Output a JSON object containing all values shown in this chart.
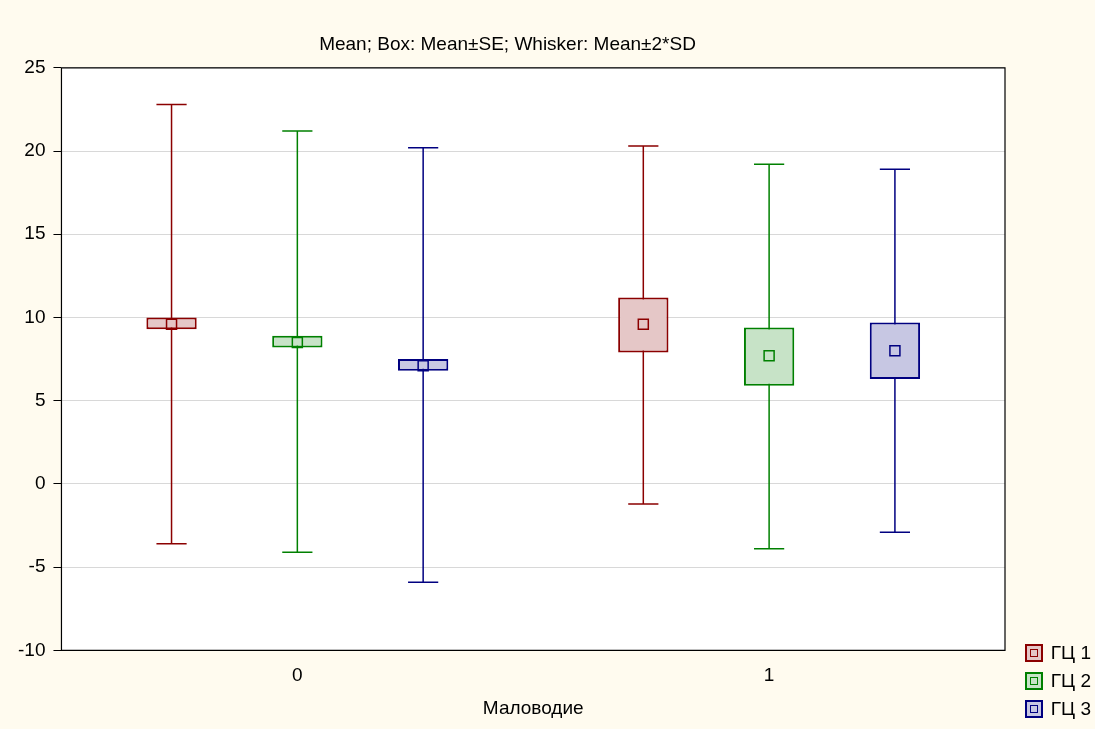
{
  "chart_data": {
    "type": "box",
    "title": "Mean; Box: Mean±SE; Whisker: Mean±2*SD",
    "xlabel": "Маловодие",
    "categories": [
      "0",
      "1"
    ],
    "ylim": [
      -10,
      25
    ],
    "yticks": [
      -10,
      -5,
      0,
      5,
      10,
      15,
      20,
      25
    ],
    "grid": "y",
    "legend": "bottom right",
    "marker": "square",
    "series": [
      {
        "name": "ГЦ 1",
        "color": "#8b0000",
        "boxes": [
          {
            "low": -3.6,
            "q1": 9.3,
            "median": 9.6,
            "q3": 10,
            "high": 22.8
          },
          {
            "low": -1.2,
            "q1": 7.9,
            "median": 9.6,
            "q3": 11.2,
            "high": 20.3
          }
        ]
      },
      {
        "name": "ГЦ 2",
        "color": "#008000",
        "boxes": [
          {
            "low": -4.1,
            "q1": 8.2,
            "median": 8.5,
            "q3": 8.9,
            "high": 21.2
          },
          {
            "low": -3.9,
            "q1": 5.9,
            "median": 7.7,
            "q3": 9.4,
            "high": 19.2
          }
        ]
      },
      {
        "name": "ГЦ 3",
        "color": "#000080",
        "boxes": [
          {
            "low": -5.9,
            "q1": 6.8,
            "median": 7.1,
            "q3": 7.5,
            "high": 20.2
          },
          {
            "low": -2.9,
            "q1": 6.3,
            "median": 8,
            "q3": 9.7,
            "high": 18.9
          }
        ]
      }
    ]
  }
}
